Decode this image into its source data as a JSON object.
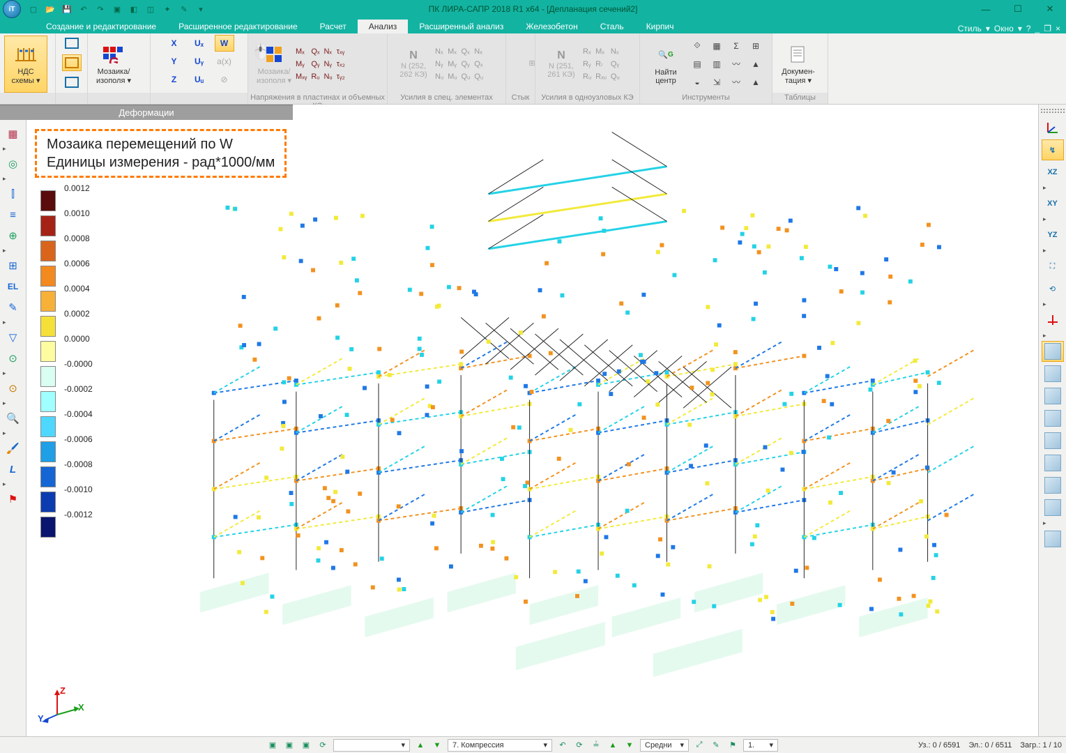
{
  "app": {
    "title": "ПК ЛИРА-САПР  2018 R1 x64 - [Депланация сечений2]",
    "logo_text": "iТ"
  },
  "qat_icons": [
    "new",
    "open",
    "save",
    "undo",
    "redo",
    "3d-box",
    "3d-shaded",
    "cube",
    "star",
    "wand",
    "dropdown"
  ],
  "tabstrip_right": {
    "style": "Стиль",
    "window": "Окно",
    "dropdown": "▾"
  },
  "tabs": [
    {
      "label": "Создание и редактирование"
    },
    {
      "label": "Расширенное редактирование"
    },
    {
      "label": "Расчет"
    },
    {
      "label": "Анализ",
      "active": true
    },
    {
      "label": "Расширенный анализ"
    },
    {
      "label": "Железобетон"
    },
    {
      "label": "Сталь"
    },
    {
      "label": "Кирпич"
    }
  ],
  "ribbon": {
    "nds": {
      "label": "НДС\nсхемы ▾"
    },
    "mosaic": {
      "label": "Мозаика/\nизополя ▾"
    },
    "deform_axes": {
      "rows": [
        [
          "X",
          "Uₓ",
          "W"
        ],
        [
          "Y",
          "Uᵧ",
          "a(x)"
        ],
        [
          "Z",
          "Uᵤ",
          "⊘"
        ]
      ],
      "highlight_cell": "W"
    },
    "deform_strip": "Деформации",
    "plate": {
      "btn": "Мозаика/\nизополя ▾",
      "sets": [
        [
          "Mₓ",
          "Qₓ",
          "Nₓ",
          "τₓᵧ"
        ],
        [
          "Mᵧ",
          "Qᵧ",
          "Nᵧ",
          "τₓ₂"
        ],
        [
          "Mₓᵧ",
          "Rᵤ",
          "Nᵤ",
          "τᵧ₂"
        ]
      ],
      "rg": "Rₓ",
      "title": "Напряжения в пластинах и объемных КЭ"
    },
    "special": {
      "btn_line1": "N (252,",
      "btn_line2": "262 КЭ)",
      "cells": [
        [
          "Nₓ",
          "Mₓ",
          "Qₓ"
        ],
        [
          "Nᵧ",
          "Mᵧ",
          "Qᵧ"
        ],
        [
          "Nᵤ",
          "Mᵤ",
          "Qᵤ"
        ]
      ],
      "extra": [
        "Nₓ",
        "Qₓ",
        "Qᵤ"
      ],
      "title": "Усилия в спец. элементах"
    },
    "joint": {
      "title": "Стык"
    },
    "single": {
      "btn_line1": "N (251,",
      "btn_line2": "261 КЭ)",
      "cells": [
        [
          "Rₓ",
          "Mₓ",
          "Nₓ"
        ],
        [
          "Rᵧ",
          "Rₗ",
          "Qᵧ"
        ],
        [
          "Rᵤ",
          "Rₓᵤ",
          "Qᵤ"
        ]
      ],
      "title": "Усилия в одноузловых КЭ"
    },
    "tools": {
      "find": "Найти\nцентр",
      "title": "Инструменты"
    },
    "doc": {
      "label": "Докумен-\nтация ▾",
      "title": "Таблицы"
    }
  },
  "callout": {
    "line1": "Мозаика перемещений по W",
    "line2": "Единицы измерения - рад*1000/мм"
  },
  "scale": {
    "values": [
      "0.0012",
      "0.0010",
      "0.0008",
      "0.0006",
      "0.0004",
      "0.0002",
      "0.0000",
      "-0.0000",
      "-0.0002",
      "-0.0004",
      "-0.0006",
      "-0.0008",
      "-0.0010",
      "-0.0012"
    ],
    "colors": [
      "#5a0c0c",
      "#a52217",
      "#d9651c",
      "#f28a1f",
      "#f7b038",
      "#f5e03a",
      "#fdfca0",
      "#d9fff2",
      "#a0ffff",
      "#4fd8ff",
      "#1f9fe6",
      "#1566d4",
      "#0c3db0",
      "#09156e"
    ]
  },
  "left_toolbar": [
    "grid-red",
    "circles",
    "vbar",
    "hbars",
    "target",
    "grid",
    "EL",
    "paint",
    "tri",
    "funnel",
    "node",
    "play",
    "node2",
    "zoom",
    "wand",
    "L",
    "tri2",
    "flag"
  ],
  "right_toolbar": [
    {
      "t": "axes",
      "active": false
    },
    {
      "t": "axes-iso",
      "active": true,
      "label": "↯"
    },
    {
      "t": "XZ",
      "label": "XZ"
    },
    {
      "t": "tri"
    },
    {
      "t": "XY",
      "label": "XY"
    },
    {
      "t": "tri"
    },
    {
      "t": "YZ",
      "label": "YZ"
    },
    {
      "t": "tri"
    },
    {
      "t": "persp"
    },
    {
      "t": "rot"
    },
    {
      "t": "tri"
    },
    {
      "t": "axes-red"
    },
    {
      "t": "tri"
    },
    {
      "t": "cube",
      "active": true
    },
    {
      "t": "cube"
    },
    {
      "t": "cube"
    },
    {
      "t": "cube"
    },
    {
      "t": "cube"
    },
    {
      "t": "cube"
    },
    {
      "t": "cube"
    },
    {
      "t": "cube"
    },
    {
      "t": "tri"
    },
    {
      "t": "cube-persp"
    }
  ],
  "gizmo": {
    "z": "Z",
    "x": "X",
    "y": "Y"
  },
  "status": {
    "combo1": "",
    "combo2": "7. Компрессия",
    "combo3": "Средни",
    "combo4": "1.",
    "nodes": "Уз.: 0 / 6591",
    "elems": "Эл.: 0 / 6511",
    "load": "Загр.: 1 / 10"
  },
  "model_colors": {
    "cyan": "#24d2e6",
    "yellow": "#f2ea3a",
    "orange": "#f2921f",
    "blue": "#1f78e6",
    "dark": "#222222",
    "slab": "#d4f7e4"
  }
}
